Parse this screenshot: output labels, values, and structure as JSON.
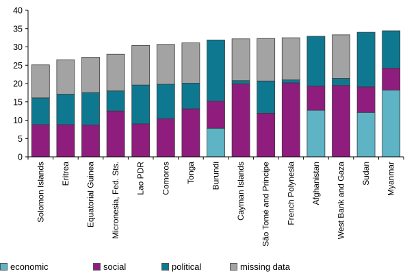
{
  "chart_data": {
    "type": "bar",
    "stacked": true,
    "categories": [
      "Solomon Islands",
      "Eritrea",
      "Equatorial Guinea",
      "Micronesia, Fed. Sts.",
      "Lao PDR",
      "Comoros",
      "Tonga",
      "Burundi",
      "Cayman Islands",
      "São Tomé and Principe",
      "French Polynesia",
      "Afghanistan",
      "West Bank and Gaza",
      "Sudan",
      "Myanmar"
    ],
    "series": [
      {
        "name": "economic",
        "color": "#5eb3c5",
        "values": [
          0,
          0,
          0,
          0,
          0,
          0,
          0,
          7.8,
          0,
          0,
          0,
          12.7,
          0,
          12.1,
          18.2
        ]
      },
      {
        "name": "social",
        "color": "#8f1d7e",
        "values": [
          8.8,
          8.8,
          8.7,
          12.5,
          9.0,
          10.4,
          13.1,
          7.4,
          19.9,
          11.9,
          20.2,
          6.6,
          19.5,
          7.0,
          6.0
        ]
      },
      {
        "name": "political",
        "color": "#0f7891",
        "values": [
          7.3,
          8.3,
          8.8,
          5.5,
          10.6,
          9.4,
          7.0,
          16.7,
          0.9,
          8.8,
          0.8,
          13.6,
          1.9,
          14.9,
          10.2
        ]
      },
      {
        "name": "missing data",
        "color": "#a3a3a3",
        "values": [
          9.0,
          9.4,
          9.7,
          10.0,
          10.8,
          10.9,
          11.0,
          0,
          11.4,
          11.6,
          11.5,
          0,
          11.9,
          0,
          0
        ]
      }
    ],
    "yticks": [
      0,
      5,
      10,
      15,
      20,
      25,
      30,
      35,
      40
    ],
    "ylim": [
      0,
      40
    ],
    "grid": false,
    "legend_position": "bottom"
  }
}
